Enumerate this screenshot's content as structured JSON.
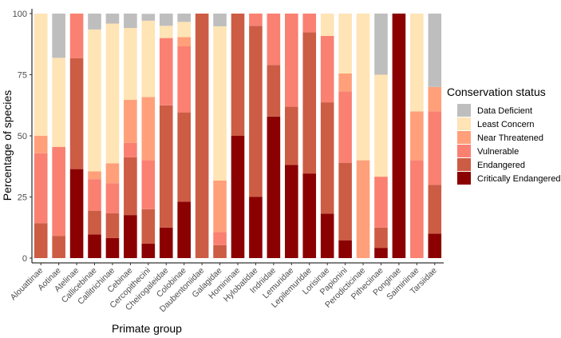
{
  "chart_data": {
    "type": "bar",
    "stacked": true,
    "xlabel": "Primate group",
    "ylabel": "Percentage of species",
    "ylim": [
      0,
      100
    ],
    "yticks": [
      0,
      25,
      50,
      75,
      100
    ],
    "legend_title": "Conservation status",
    "legend_position": "right",
    "categories": [
      "Alouattinae",
      "Aotinae",
      "Atelinae",
      "Callicebinae",
      "Callitrichinae",
      "Cebinae",
      "Cercopithecini",
      "Cheirogaleidae",
      "Colobinae",
      "Daubentoniidae",
      "Galagidae",
      "Homininae",
      "Hylobatidae",
      "Indriidae",
      "Lemuridae",
      "Lepilemuridae",
      "Lorisinae",
      "Papionini",
      "Perodicticinae",
      "Pitheciinae",
      "Ponginae",
      "Saimiriinae",
      "Tarsiidae"
    ],
    "series": [
      {
        "name": "Critically Endangered",
        "color": "#8B0000",
        "values": [
          0,
          0,
          36.4,
          9.7,
          8.2,
          17.6,
          5.9,
          12.5,
          23.1,
          0,
          0,
          50,
          25,
          57.9,
          38.1,
          34.6,
          18.2,
          7.3,
          0,
          4.2,
          100,
          0,
          10
        ]
      },
      {
        "name": "Endangered",
        "color": "#CD5C45",
        "values": [
          14.3,
          9.1,
          45.4,
          9.7,
          10.2,
          23.6,
          14.1,
          50,
          36.5,
          100,
          5.3,
          50,
          70,
          21.1,
          23.8,
          57.7,
          45.5,
          31.7,
          0,
          8.3,
          0,
          0,
          20
        ]
      },
      {
        "name": "Vulnerable",
        "color": "#FA8072",
        "values": [
          28.6,
          36.4,
          18.2,
          12.9,
          12.2,
          5.9,
          20,
          27.5,
          27,
          0,
          5.3,
          0,
          5,
          21,
          38.1,
          7.7,
          27.2,
          29.2,
          0,
          20.8,
          0,
          40,
          30
        ]
      },
      {
        "name": "Near Threatened",
        "color": "#FFA07A",
        "values": [
          7.1,
          0,
          0,
          3.2,
          8.2,
          17.6,
          25.9,
          0,
          3.8,
          0,
          21.1,
          0,
          0,
          0,
          0,
          0,
          0,
          7.3,
          40,
          0,
          0,
          20,
          10
        ]
      },
      {
        "name": "Least Concern",
        "color": "#FFE4B5",
        "values": [
          50,
          36.4,
          0,
          58,
          57.1,
          29.4,
          31.2,
          5,
          6.2,
          0,
          63.1,
          0,
          0,
          0,
          0,
          0,
          9.1,
          24.5,
          60,
          41.7,
          0,
          40,
          0
        ]
      },
      {
        "name": "Data Deficient",
        "color": "#BEBEBE",
        "values": [
          0,
          18.1,
          0,
          6.5,
          4.1,
          5.9,
          2.8,
          5,
          3.4,
          0,
          5.2,
          0,
          0,
          0,
          0,
          0,
          0,
          0,
          0,
          25,
          0,
          0,
          30
        ]
      }
    ],
    "legend_order": [
      "Data Deficient",
      "Least Concern",
      "Near Threatened",
      "Vulnerable",
      "Endangered",
      "Critically Endangered"
    ]
  }
}
